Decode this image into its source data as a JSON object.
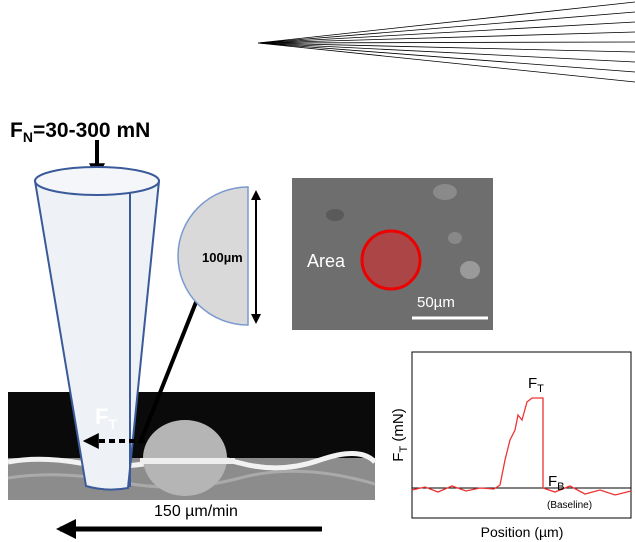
{
  "normal_force": {
    "symbol": "F",
    "subscript": "N",
    "text": "=30-300 mN"
  },
  "tangential_force": {
    "symbol": "F",
    "subscript": "T"
  },
  "diameter_label": "100µm",
  "sem": {
    "area_label": "Area",
    "scale_label": "50µm"
  },
  "speed_label": "150 µm/min",
  "plot": {
    "y_label": {
      "symbol": "F",
      "subscript": "T",
      "text": " (mN)"
    },
    "x_label": "Position (µm)",
    "peak_label": {
      "symbol": "F",
      "subscript": "T"
    },
    "baseline_label": {
      "symbol": "F",
      "subscript": "B"
    },
    "baseline_note": "(Baseline)"
  }
}
